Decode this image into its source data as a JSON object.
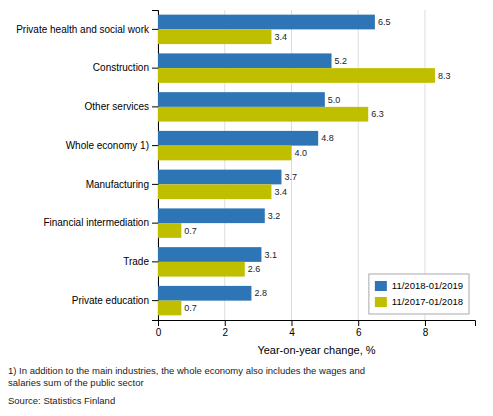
{
  "chart_data": {
    "type": "bar",
    "orientation": "horizontal",
    "categories": [
      "Private health and social work",
      "Construction",
      "Other services",
      "Whole economy 1)",
      "Manufacturing",
      "Financial intermediation",
      "Trade",
      "Private education"
    ],
    "series": [
      {
        "name": "11/2018-01/2019",
        "color": "#2E75B6",
        "values": [
          6.5,
          5.2,
          5.0,
          4.8,
          3.7,
          3.2,
          3.1,
          2.8
        ],
        "value_labels": [
          "6.5",
          "5.2",
          "5.0",
          "4.8",
          "3.7",
          "3.2",
          "3.1",
          "2.8"
        ]
      },
      {
        "name": "11/2017-01/2018",
        "color": "#BFBF00",
        "values": [
          3.4,
          8.3,
          6.3,
          4.0,
          3.4,
          0.7,
          2.6,
          0.7
        ],
        "value_labels": [
          "3.4",
          "8.3",
          "6.3",
          "4.0",
          "3.4",
          "0.7",
          "2.6",
          "0.7"
        ]
      }
    ],
    "x_label": "Year-on-year change, %",
    "xlim": [
      0,
      9.5
    ],
    "xticks": [
      0,
      2,
      4,
      6,
      8
    ],
    "grid": true,
    "legend": "lower right",
    "data_labels": true,
    "annotations": [
      "1) In addition to the main industries, the whole economy also includes the wages and\nsalaries sum of the public sector",
      "Source: Statistics Finland"
    ]
  }
}
